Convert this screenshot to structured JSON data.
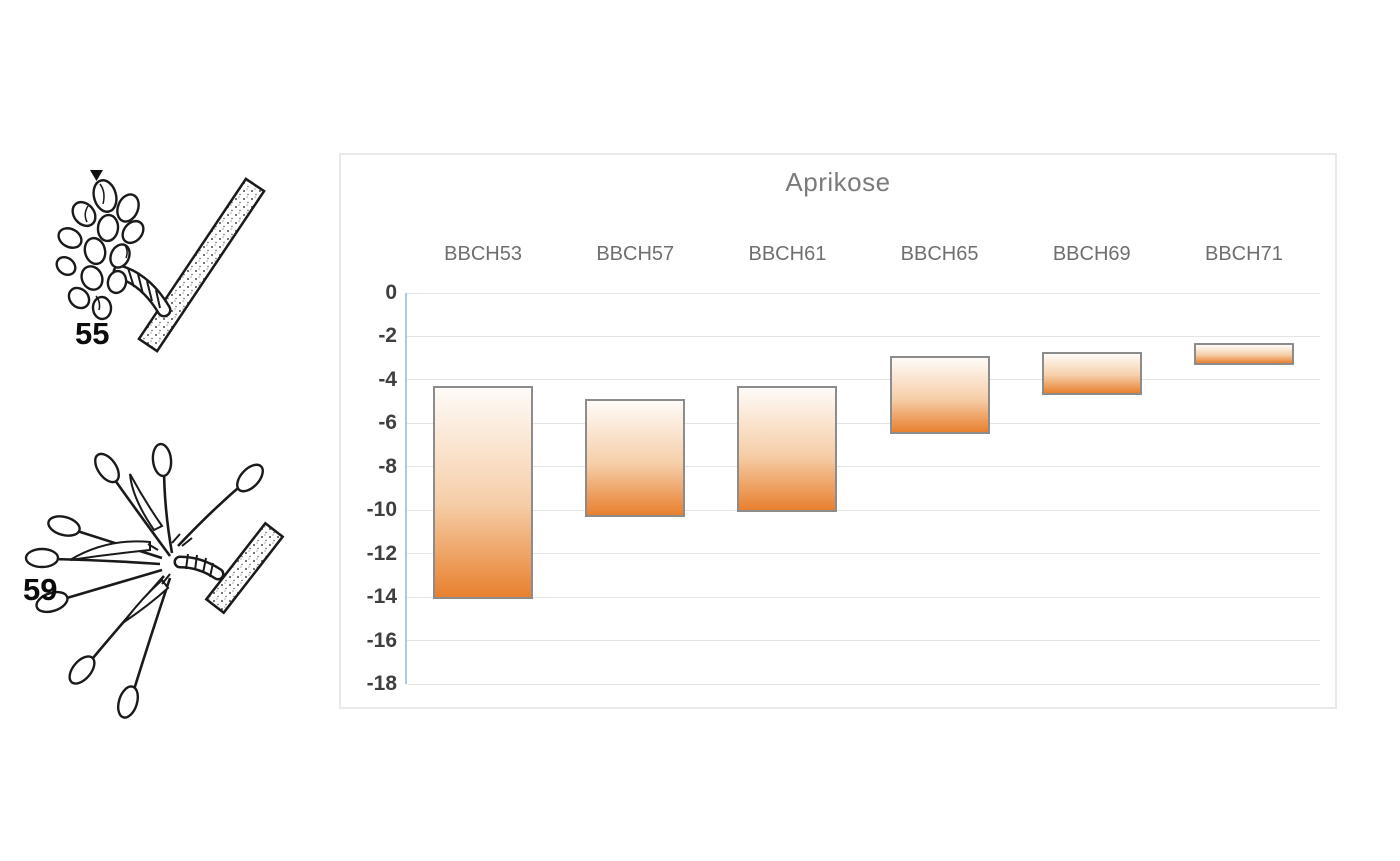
{
  "page": {
    "background_color": "#ffffff"
  },
  "illustrations": [
    {
      "label": "55",
      "name": "bbch-stage-55-bud-cluster"
    },
    {
      "label": "59",
      "name": "bbch-stage-59-elongated-buds"
    }
  ],
  "chart_data": {
    "type": "bar",
    "subtype": "floating-range-columns",
    "title": "Aprikose",
    "categories": [
      "BBCH53",
      "BBCH57",
      "BBCH61",
      "BBCH65",
      "BBCH69",
      "BBCH71"
    ],
    "series": [
      {
        "name": "range",
        "ranges": [
          {
            "high": -4.3,
            "low": -14.1
          },
          {
            "high": -4.9,
            "low": -10.3
          },
          {
            "high": -4.3,
            "low": -10.1
          },
          {
            "high": -2.9,
            "low": -6.5
          },
          {
            "high": -2.7,
            "low": -4.7
          },
          {
            "high": -2.3,
            "low": -3.3
          }
        ]
      }
    ],
    "xlabel": "",
    "ylabel": "",
    "ylim": [
      0,
      -18
    ],
    "yticks": [
      0,
      -2,
      -4,
      -6,
      -8,
      -10,
      -12,
      -14,
      -16,
      -18
    ],
    "grid": true,
    "legend": false,
    "category_label_position": "top",
    "colors": {
      "bar_gradient_top": "#FEFBF8",
      "bar_gradient_mid": "#F6CEA8",
      "bar_gradient_bottom": "#E8802F",
      "bar_border": "#8C8C8C",
      "axis_line": "#A9CBE8",
      "gridline": "#E4E4E4",
      "title_text": "#7B7B7B",
      "category_text": "#6F6F6F",
      "tick_text": "#3F3F3F",
      "chart_border": "#E9E9E9"
    }
  }
}
